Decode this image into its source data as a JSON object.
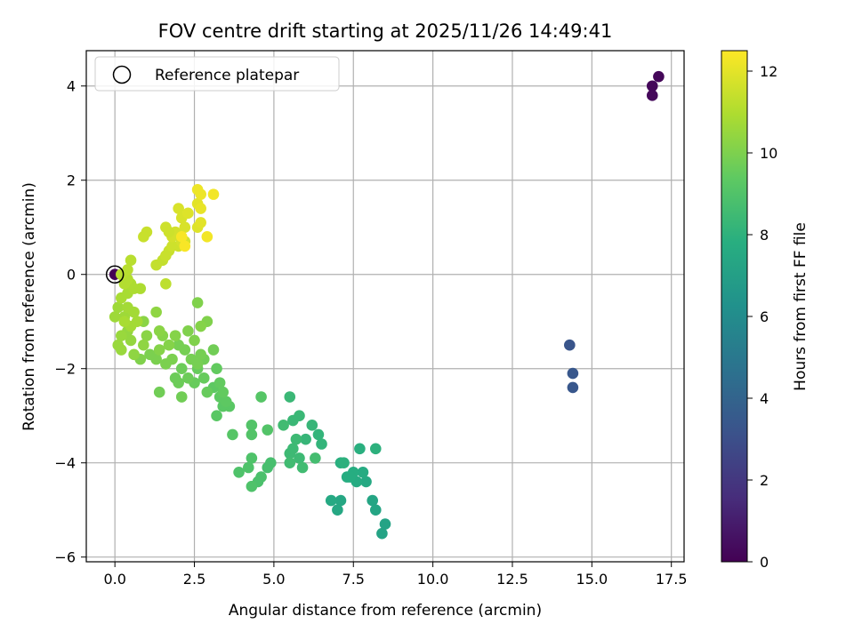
{
  "chart_data": {
    "type": "scatter",
    "title": "FOV centre drift starting at 2025/11/26 14:49:41",
    "xlabel": "Angular distance from reference (arcmin)",
    "ylabel": "Rotation from reference (arcmin)",
    "xlim": [
      -0.9,
      17.9
    ],
    "ylim": [
      -6.1,
      4.75
    ],
    "xticks": [
      0.0,
      2.5,
      5.0,
      7.5,
      10.0,
      12.5,
      15.0,
      17.5
    ],
    "xtick_labels": [
      "0.0",
      "2.5",
      "5.0",
      "7.5",
      "10.0",
      "12.5",
      "15.0",
      "17.5"
    ],
    "yticks": [
      -6,
      -4,
      -2,
      0,
      2,
      4
    ],
    "ytick_labels": [
      "−6",
      "−4",
      "−2",
      "0",
      "2",
      "4"
    ],
    "grid": true,
    "legend": {
      "position": "top-left",
      "entries": [
        "Reference platepar"
      ]
    },
    "reference_point": {
      "x": 0.0,
      "y": 0.0
    },
    "colorbar": {
      "label": "Hours from first FF file",
      "range": [
        0,
        12.5
      ],
      "ticks": [
        0,
        2,
        4,
        6,
        8,
        10,
        12
      ],
      "tick_labels": [
        "0",
        "2",
        "4",
        "6",
        "8",
        "10",
        "12"
      ],
      "colormap": "viridis"
    },
    "points": [
      {
        "x": 0.0,
        "y": 0.0,
        "h": 0.0
      },
      {
        "x": 16.9,
        "y": 4.0,
        "h": 0.2
      },
      {
        "x": 17.1,
        "y": 4.2,
        "h": 0.2
      },
      {
        "x": 16.9,
        "y": 3.8,
        "h": 0.3
      },
      {
        "x": 14.3,
        "y": -1.5,
        "h": 3.3
      },
      {
        "x": 14.4,
        "y": -2.1,
        "h": 3.4
      },
      {
        "x": 14.4,
        "y": -2.4,
        "h": 3.4
      },
      {
        "x": 8.4,
        "y": -5.5,
        "h": 7.3
      },
      {
        "x": 8.5,
        "y": -5.3,
        "h": 7.3
      },
      {
        "x": 8.2,
        "y": -5.0,
        "h": 7.4
      },
      {
        "x": 8.1,
        "y": -4.8,
        "h": 7.4
      },
      {
        "x": 7.1,
        "y": -4.8,
        "h": 7.5
      },
      {
        "x": 7.0,
        "y": -5.0,
        "h": 7.5
      },
      {
        "x": 6.8,
        "y": -4.8,
        "h": 7.6
      },
      {
        "x": 7.9,
        "y": -4.4,
        "h": 7.6
      },
      {
        "x": 7.6,
        "y": -4.4,
        "h": 7.7
      },
      {
        "x": 7.8,
        "y": -4.2,
        "h": 7.7
      },
      {
        "x": 7.3,
        "y": -4.3,
        "h": 7.8
      },
      {
        "x": 7.5,
        "y": -4.2,
        "h": 7.8
      },
      {
        "x": 7.1,
        "y": -4.0,
        "h": 7.9
      },
      {
        "x": 7.7,
        "y": -3.7,
        "h": 7.9
      },
      {
        "x": 8.2,
        "y": -3.7,
        "h": 8.0
      },
      {
        "x": 7.4,
        "y": -4.3,
        "h": 7.8
      },
      {
        "x": 7.2,
        "y": -4.0,
        "h": 8.0
      },
      {
        "x": 6.5,
        "y": -3.6,
        "h": 8.2
      },
      {
        "x": 6.4,
        "y": -3.4,
        "h": 8.2
      },
      {
        "x": 6.2,
        "y": -3.2,
        "h": 8.3
      },
      {
        "x": 6.0,
        "y": -3.5,
        "h": 8.3
      },
      {
        "x": 5.8,
        "y": -3.0,
        "h": 8.4
      },
      {
        "x": 5.5,
        "y": -2.6,
        "h": 8.4
      },
      {
        "x": 5.6,
        "y": -3.1,
        "h": 8.4
      },
      {
        "x": 5.7,
        "y": -3.5,
        "h": 8.5
      },
      {
        "x": 5.5,
        "y": -3.8,
        "h": 8.5
      },
      {
        "x": 5.6,
        "y": -3.7,
        "h": 8.5
      },
      {
        "x": 5.8,
        "y": -3.9,
        "h": 8.5
      },
      {
        "x": 5.9,
        "y": -4.1,
        "h": 8.6
      },
      {
        "x": 5.5,
        "y": -4.0,
        "h": 8.6
      },
      {
        "x": 5.3,
        "y": -3.2,
        "h": 8.6
      },
      {
        "x": 6.3,
        "y": -3.9,
        "h": 8.7
      },
      {
        "x": 4.9,
        "y": -4.0,
        "h": 8.8
      },
      {
        "x": 4.8,
        "y": -4.1,
        "h": 8.8
      },
      {
        "x": 4.6,
        "y": -4.3,
        "h": 8.9
      },
      {
        "x": 4.5,
        "y": -4.4,
        "h": 8.9
      },
      {
        "x": 4.3,
        "y": -4.5,
        "h": 9.0
      },
      {
        "x": 4.3,
        "y": -3.9,
        "h": 9.0
      },
      {
        "x": 4.2,
        "y": -4.1,
        "h": 9.0
      },
      {
        "x": 3.9,
        "y": -4.2,
        "h": 9.0
      },
      {
        "x": 4.3,
        "y": -3.4,
        "h": 9.1
      },
      {
        "x": 4.3,
        "y": -3.2,
        "h": 9.1
      },
      {
        "x": 4.8,
        "y": -3.3,
        "h": 9.1
      },
      {
        "x": 4.6,
        "y": -2.6,
        "h": 9.2
      },
      {
        "x": 3.7,
        "y": -3.4,
        "h": 9.2
      },
      {
        "x": 3.6,
        "y": -2.8,
        "h": 9.3
      },
      {
        "x": 3.4,
        "y": -2.8,
        "h": 9.3
      },
      {
        "x": 3.2,
        "y": -3.0,
        "h": 9.3
      },
      {
        "x": 3.3,
        "y": -2.6,
        "h": 9.4
      },
      {
        "x": 3.5,
        "y": -2.7,
        "h": 9.4
      },
      {
        "x": 3.1,
        "y": -2.4,
        "h": 9.4
      },
      {
        "x": 3.3,
        "y": -2.3,
        "h": 9.5
      },
      {
        "x": 3.4,
        "y": -2.5,
        "h": 9.5
      },
      {
        "x": 3.2,
        "y": -2.0,
        "h": 9.5
      },
      {
        "x": 2.9,
        "y": -2.5,
        "h": 9.6
      },
      {
        "x": 2.8,
        "y": -2.2,
        "h": 9.6
      },
      {
        "x": 2.6,
        "y": -2.0,
        "h": 9.6
      },
      {
        "x": 2.5,
        "y": -2.3,
        "h": 9.6
      },
      {
        "x": 2.3,
        "y": -2.2,
        "h": 9.7
      },
      {
        "x": 2.1,
        "y": -2.0,
        "h": 9.7
      },
      {
        "x": 2.0,
        "y": -2.3,
        "h": 9.7
      },
      {
        "x": 1.9,
        "y": -2.2,
        "h": 9.7
      },
      {
        "x": 2.1,
        "y": -2.6,
        "h": 9.8
      },
      {
        "x": 1.4,
        "y": -2.5,
        "h": 9.8
      },
      {
        "x": 3.1,
        "y": -1.6,
        "h": 9.8
      },
      {
        "x": 2.8,
        "y": -1.8,
        "h": 9.8
      },
      {
        "x": 2.7,
        "y": -1.7,
        "h": 9.9
      },
      {
        "x": 2.6,
        "y": -1.9,
        "h": 9.9
      },
      {
        "x": 2.4,
        "y": -1.8,
        "h": 9.9
      },
      {
        "x": 2.2,
        "y": -1.6,
        "h": 9.9
      },
      {
        "x": 2.0,
        "y": -1.5,
        "h": 9.9
      },
      {
        "x": 1.8,
        "y": -1.8,
        "h": 10.0
      },
      {
        "x": 1.6,
        "y": -1.9,
        "h": 10.0
      },
      {
        "x": 1.3,
        "y": -1.8,
        "h": 10.0
      },
      {
        "x": 1.1,
        "y": -1.7,
        "h": 10.0
      },
      {
        "x": 0.8,
        "y": -1.8,
        "h": 10.1
      },
      {
        "x": 2.6,
        "y": -0.6,
        "h": 10.1
      },
      {
        "x": 2.9,
        "y": -1.0,
        "h": 10.1
      },
      {
        "x": 2.5,
        "y": -1.4,
        "h": 10.1
      },
      {
        "x": 2.3,
        "y": -1.2,
        "h": 10.1
      },
      {
        "x": 2.7,
        "y": -1.1,
        "h": 10.2
      },
      {
        "x": 1.9,
        "y": -1.3,
        "h": 10.2
      },
      {
        "x": 1.7,
        "y": -1.5,
        "h": 10.2
      },
      {
        "x": 1.5,
        "y": -1.3,
        "h": 10.2
      },
      {
        "x": 1.4,
        "y": -1.6,
        "h": 10.2
      },
      {
        "x": 1.4,
        "y": -1.2,
        "h": 10.3
      },
      {
        "x": 1.0,
        "y": -1.3,
        "h": 10.3
      },
      {
        "x": 0.9,
        "y": -1.0,
        "h": 10.3
      },
      {
        "x": 1.3,
        "y": -0.8,
        "h": 10.4
      },
      {
        "x": 0.9,
        "y": -1.5,
        "h": 10.4
      },
      {
        "x": 0.6,
        "y": -1.7,
        "h": 10.4
      },
      {
        "x": 0.5,
        "y": -1.4,
        "h": 10.5
      },
      {
        "x": 0.4,
        "y": -1.2,
        "h": 10.5
      },
      {
        "x": 0.2,
        "y": -1.3,
        "h": 10.6
      },
      {
        "x": 0.1,
        "y": -1.5,
        "h": 10.6
      },
      {
        "x": 0.2,
        "y": -1.6,
        "h": 10.6
      },
      {
        "x": 0.0,
        "y": -0.9,
        "h": 10.7
      },
      {
        "x": 0.1,
        "y": -0.7,
        "h": 10.7
      },
      {
        "x": 0.3,
        "y": -0.9,
        "h": 10.7
      },
      {
        "x": 0.4,
        "y": -0.7,
        "h": 10.8
      },
      {
        "x": 0.6,
        "y": -0.8,
        "h": 10.8
      },
      {
        "x": 0.7,
        "y": -1.0,
        "h": 10.8
      },
      {
        "x": 0.5,
        "y": -1.1,
        "h": 10.8
      },
      {
        "x": 0.3,
        "y": -1.0,
        "h": 10.9
      },
      {
        "x": 0.2,
        "y": -0.5,
        "h": 10.9
      },
      {
        "x": 0.4,
        "y": -0.4,
        "h": 10.9
      },
      {
        "x": 0.6,
        "y": -0.3,
        "h": 11.0
      },
      {
        "x": 0.8,
        "y": -0.3,
        "h": 11.0
      },
      {
        "x": 0.5,
        "y": -0.2,
        "h": 11.0
      },
      {
        "x": 0.4,
        "y": -0.1,
        "h": 11.1
      },
      {
        "x": 0.3,
        "y": -0.2,
        "h": 11.1
      },
      {
        "x": 0.3,
        "y": -0.1,
        "h": 11.1
      },
      {
        "x": 0.2,
        "y": 0.0,
        "h": 11.2
      },
      {
        "x": 0.4,
        "y": 0.1,
        "h": 11.2
      },
      {
        "x": 0.5,
        "y": 0.3,
        "h": 11.2
      },
      {
        "x": 1.6,
        "y": -0.2,
        "h": 11.3
      },
      {
        "x": 1.3,
        "y": 0.2,
        "h": 11.4
      },
      {
        "x": 1.5,
        "y": 0.3,
        "h": 11.4
      },
      {
        "x": 1.6,
        "y": 0.4,
        "h": 11.5
      },
      {
        "x": 1.7,
        "y": 0.5,
        "h": 11.5
      },
      {
        "x": 1.8,
        "y": 0.6,
        "h": 11.6
      },
      {
        "x": 2.0,
        "y": 0.6,
        "h": 11.6
      },
      {
        "x": 2.1,
        "y": 0.7,
        "h": 11.7
      },
      {
        "x": 2.2,
        "y": 0.7,
        "h": 11.7
      },
      {
        "x": 1.9,
        "y": 0.9,
        "h": 11.7
      },
      {
        "x": 1.8,
        "y": 0.8,
        "h": 11.7
      },
      {
        "x": 1.6,
        "y": 1.0,
        "h": 11.6
      },
      {
        "x": 1.7,
        "y": 0.9,
        "h": 11.6
      },
      {
        "x": 1.0,
        "y": 0.9,
        "h": 11.5
      },
      {
        "x": 0.9,
        "y": 0.8,
        "h": 11.5
      },
      {
        "x": 2.0,
        "y": 1.4,
        "h": 11.8
      },
      {
        "x": 2.1,
        "y": 1.2,
        "h": 11.8
      },
      {
        "x": 2.2,
        "y": 1.0,
        "h": 11.8
      },
      {
        "x": 2.3,
        "y": 1.3,
        "h": 11.9
      },
      {
        "x": 2.6,
        "y": 1.0,
        "h": 11.9
      },
      {
        "x": 2.7,
        "y": 1.1,
        "h": 12.0
      },
      {
        "x": 2.6,
        "y": 1.5,
        "h": 12.0
      },
      {
        "x": 2.7,
        "y": 1.4,
        "h": 12.1
      },
      {
        "x": 2.6,
        "y": 1.8,
        "h": 12.2
      },
      {
        "x": 2.7,
        "y": 1.7,
        "h": 12.2
      },
      {
        "x": 3.1,
        "y": 1.7,
        "h": 12.3
      },
      {
        "x": 2.9,
        "y": 0.8,
        "h": 12.3
      },
      {
        "x": 2.2,
        "y": 0.6,
        "h": 12.4
      },
      {
        "x": 2.1,
        "y": 0.8,
        "h": 12.4
      }
    ]
  }
}
